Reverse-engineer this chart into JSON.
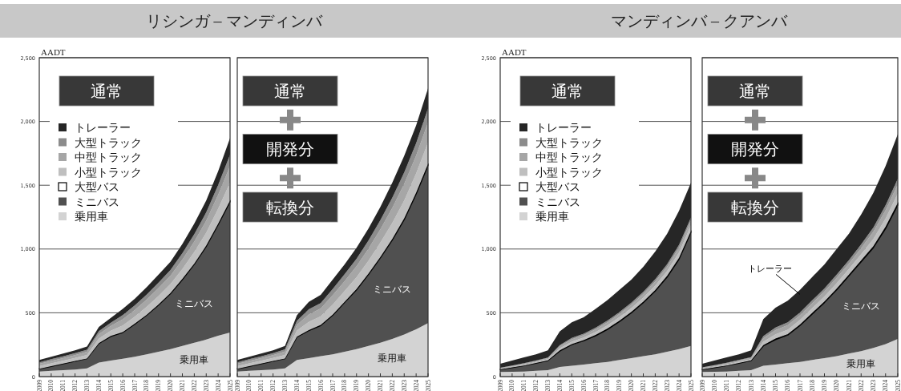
{
  "chart_data": [
    {
      "type": "area",
      "stacked": true,
      "title": "リシンガ – マンディンバ",
      "ylabel": "AADT",
      "legend": "top left",
      "grid": "y",
      "x": [
        2009,
        2010,
        2011,
        2012,
        2013,
        2014,
        2015,
        2016,
        2017,
        2018,
        2019,
        2020,
        2021,
        2022,
        2023,
        2024,
        2025
      ],
      "xlim": [
        2009,
        2025
      ],
      "xticks": [
        2009,
        2010,
        2011,
        2012,
        2013,
        2014,
        2015,
        2016,
        2017,
        2018,
        2019,
        2020,
        2021,
        2022,
        2023,
        2024,
        2025
      ],
      "ylim": [
        0,
        2500
      ],
      "yticks": [
        0,
        500,
        {
          "value": 1000,
          "label": "1,000"
        },
        {
          "value": 1500,
          "label": "1,500"
        },
        {
          "value": 2000,
          "label": "2,000"
        },
        {
          "value": 2500,
          "label": "2,500"
        }
      ],
      "series": [
        {
          "name": "乗用車",
          "color": "#d3d3d3",
          "values": [
            40,
            45,
            50,
            55,
            65,
            110,
            125,
            140,
            155,
            175,
            195,
            215,
            240,
            265,
            290,
            320,
            345
          ]
        },
        {
          "name": "ミニバス",
          "color": "#505050",
          "values": [
            20,
            35,
            50,
            65,
            75,
            150,
            190,
            205,
            255,
            305,
            365,
            435,
            520,
            615,
            730,
            870,
            1025
          ]
        },
        {
          "name": "大型バス",
          "color": "#ffffff",
          "values": [
            2,
            2,
            2,
            2,
            2,
            3,
            3,
            4,
            4,
            4,
            5,
            5,
            6,
            6,
            7,
            8,
            10
          ]
        },
        {
          "name": "小型トラック",
          "color": "#bfbfbf",
          "values": [
            20,
            21,
            22,
            24,
            27,
            36,
            41,
            52,
            56,
            62,
            67,
            70,
            78,
            90,
            101,
            118,
            140
          ]
        },
        {
          "name": "中型トラック",
          "color": "#a6a6a6",
          "values": [
            18,
            19,
            21,
            22,
            25,
            34,
            38,
            48,
            52,
            57,
            62,
            65,
            73,
            83,
            94,
            109,
            130
          ]
        },
        {
          "name": "大型トラック",
          "color": "#8c8c8c",
          "values": [
            12,
            14,
            14,
            15,
            17,
            23,
            26,
            33,
            36,
            40,
            43,
            45,
            50,
            58,
            65,
            76,
            90
          ]
        },
        {
          "name": "トレーラー",
          "color": "#262626",
          "values": [
            18,
            19,
            21,
            22,
            24,
            34,
            37,
            48,
            52,
            57,
            63,
            65,
            73,
            83,
            93,
            109,
            130
          ]
        }
      ],
      "annotations": [
        "通常",
        "ミニバス",
        "乗用車"
      ]
    },
    {
      "type": "area",
      "stacked": true,
      "grid": "y",
      "tick_labels": "x",
      "x": [
        2009,
        2010,
        2011,
        2012,
        2013,
        2014,
        2015,
        2016,
        2017,
        2018,
        2019,
        2020,
        2021,
        2022,
        2023,
        2024,
        2025
      ],
      "xlim": [
        2009,
        2025
      ],
      "xticks": [
        2009,
        2010,
        2011,
        2012,
        2013,
        2014,
        2015,
        2016,
        2017,
        2018,
        2019,
        2020,
        2021,
        2022,
        2023,
        2024,
        2025
      ],
      "ylim": [
        0,
        2500
      ],
      "yticks": [
        0,
        500,
        1000,
        1500,
        2000,
        2500
      ],
      "series": [
        {
          "name": "乗用車",
          "color": "#d3d3d3",
          "values": [
            40,
            45,
            50,
            55,
            65,
            130,
            145,
            160,
            175,
            195,
            215,
            240,
            265,
            295,
            330,
            370,
            420
          ]
        },
        {
          "name": "ミニバス",
          "color": "#505050",
          "values": [
            20,
            35,
            50,
            65,
            75,
            180,
            215,
            240,
            305,
            385,
            465,
            560,
            665,
            775,
            900,
            1060,
            1235
          ]
        },
        {
          "color": "#ffffff",
          "values": [
            2,
            2,
            2,
            2,
            2,
            3,
            5,
            5,
            6,
            6,
            7,
            7,
            8,
            9,
            10,
            11,
            12
          ]
        },
        {
          "color": "#bfbfbf",
          "values": [
            20,
            21,
            22,
            24,
            28,
            48,
            63,
            67,
            78,
            84,
            92,
            101,
            112,
            126,
            140,
            151,
            169
          ]
        },
        {
          "color": "#a6a6a6",
          "values": [
            18,
            19,
            21,
            22,
            26,
            44,
            59,
            62,
            73,
            78,
            86,
            94,
            104,
            117,
            130,
            140,
            157
          ]
        },
        {
          "color": "#8c8c8c",
          "values": [
            12,
            14,
            14,
            15,
            18,
            31,
            40,
            43,
            50,
            54,
            59,
            65,
            72,
            81,
            90,
            97,
            109
          ]
        },
        {
          "color": "#262626",
          "values": [
            18,
            19,
            21,
            22,
            26,
            44,
            58,
            63,
            73,
            78,
            86,
            93,
            104,
            117,
            130,
            141,
            158
          ]
        }
      ],
      "annotations": [
        "通常",
        "開発分",
        "転換分"
      ]
    },
    {
      "type": "area",
      "stacked": true,
      "title": "マンディンバ – クアンバ",
      "ylabel": "AADT",
      "legend": "top left",
      "grid": "y",
      "x": [
        2009,
        2010,
        2011,
        2012,
        2013,
        2014,
        2015,
        2016,
        2017,
        2018,
        2019,
        2020,
        2021,
        2022,
        2023,
        2024,
        2025
      ],
      "xlim": [
        2009,
        2025
      ],
      "xticks": [
        2009,
        2010,
        2011,
        2012,
        2013,
        2014,
        2015,
        2016,
        2017,
        2018,
        2019,
        2020,
        2021,
        2022,
        2023,
        2024,
        2025
      ],
      "ylim": [
        0,
        2500
      ],
      "yticks": [
        0,
        500,
        {
          "value": 1000,
          "label": "1,000"
        },
        {
          "value": 1500,
          "label": "1,500"
        },
        {
          "value": 2000,
          "label": "2,000"
        },
        {
          "value": 2500,
          "label": "2,500"
        }
      ],
      "series": [
        {
          "name": "乗用車",
          "color": "#d3d3d3",
          "values": [
            36,
            38,
            40,
            45,
            51,
            75,
            85,
            95,
            105,
            115,
            130,
            145,
            160,
            175,
            195,
            215,
            240
          ]
        },
        {
          "name": "ミニバス",
          "color": "#505050",
          "values": [
            20,
            32,
            45,
            60,
            74,
            125,
            165,
            185,
            215,
            255,
            300,
            355,
            420,
            495,
            585,
            705,
            890
          ]
        },
        {
          "name": "大型バス",
          "color": "#ffffff",
          "values": [
            1,
            2,
            2,
            2,
            2,
            5,
            5,
            6,
            6,
            7,
            8,
            8,
            8,
            9,
            10,
            11,
            12
          ]
        },
        {
          "name": "小型トラック",
          "color": "#bfbfbf",
          "values": [
            5,
            6,
            7,
            8,
            9,
            17,
            19,
            20,
            23,
            25,
            28,
            29,
            31,
            34,
            37,
            42,
            43
          ]
        },
        {
          "name": "中型トラック",
          "color": "#a6a6a6",
          "values": [
            4,
            5,
            7,
            7,
            8,
            16,
            18,
            19,
            21,
            23,
            25,
            26,
            28,
            31,
            34,
            38,
            39
          ]
        },
        {
          "name": "大型トラック",
          "color": "#8c8c8c",
          "values": [
            3,
            3,
            4,
            4,
            5,
            9,
            11,
            11,
            13,
            14,
            15,
            16,
            17,
            19,
            20,
            23,
            23
          ]
        },
        {
          "name": "トレーラー",
          "color": "#262626",
          "values": [
            31,
            39,
            45,
            49,
            56,
            108,
            122,
            129,
            147,
            161,
            174,
            181,
            196,
            217,
            239,
            266,
            273
          ]
        }
      ],
      "annotations": [
        "通常"
      ]
    },
    {
      "type": "area",
      "stacked": true,
      "grid": "y",
      "tick_labels": "x",
      "x": [
        2009,
        2010,
        2011,
        2012,
        2013,
        2014,
        2015,
        2016,
        2017,
        2018,
        2019,
        2020,
        2021,
        2022,
        2023,
        2024,
        2025
      ],
      "xlim": [
        2009,
        2025
      ],
      "xticks": [
        2009,
        2010,
        2011,
        2012,
        2013,
        2014,
        2015,
        2016,
        2017,
        2018,
        2019,
        2020,
        2021,
        2022,
        2023,
        2024,
        2025
      ],
      "ylim": [
        0,
        2500
      ],
      "yticks": [
        0,
        500,
        1000,
        1500,
        2000,
        2500
      ],
      "series": [
        {
          "name": "乗用車",
          "color": "#d3d3d3",
          "values": [
            36,
            38,
            40,
            45,
            51,
            85,
            95,
            105,
            115,
            130,
            145,
            160,
            180,
            200,
            225,
            255,
            295
          ]
        },
        {
          "name": "ミニバス",
          "color": "#505050",
          "values": [
            20,
            32,
            45,
            60,
            74,
            155,
            195,
            220,
            285,
            360,
            435,
            520,
            610,
            700,
            785,
            905,
            1050
          ]
        },
        {
          "color": "#ffffff",
          "values": [
            1,
            2,
            2,
            2,
            2,
            6,
            8,
            8,
            8,
            9,
            9,
            10,
            10,
            11,
            13,
            15,
            17
          ]
        },
        {
          "color": "#bfbfbf",
          "values": [
            6,
            7,
            8,
            9,
            10,
            27,
            33,
            35,
            36,
            38,
            39,
            42,
            43,
            48,
            56,
            64,
            72
          ]
        },
        {
          "color": "#a6a6a6",
          "values": [
            6,
            7,
            8,
            9,
            10,
            27,
            33,
            35,
            36,
            38,
            39,
            42,
            43,
            48,
            56,
            64,
            72
          ]
        },
        {
          "color": "#8c8c8c",
          "values": [
            4,
            4,
            5,
            6,
            6,
            17,
            20,
            22,
            22,
            23,
            24,
            26,
            26,
            30,
            34,
            39,
            44
          ]
        },
        {
          "name": "トレーラー",
          "color": "#262626",
          "values": [
            27,
            35,
            42,
            44,
            52,
            133,
            156,
            170,
            178,
            182,
            189,
            200,
            208,
            233,
            271,
            308,
            350
          ]
        }
      ],
      "annotations": [
        "通常",
        "開発分",
        "転換分"
      ]
    }
  ]
}
